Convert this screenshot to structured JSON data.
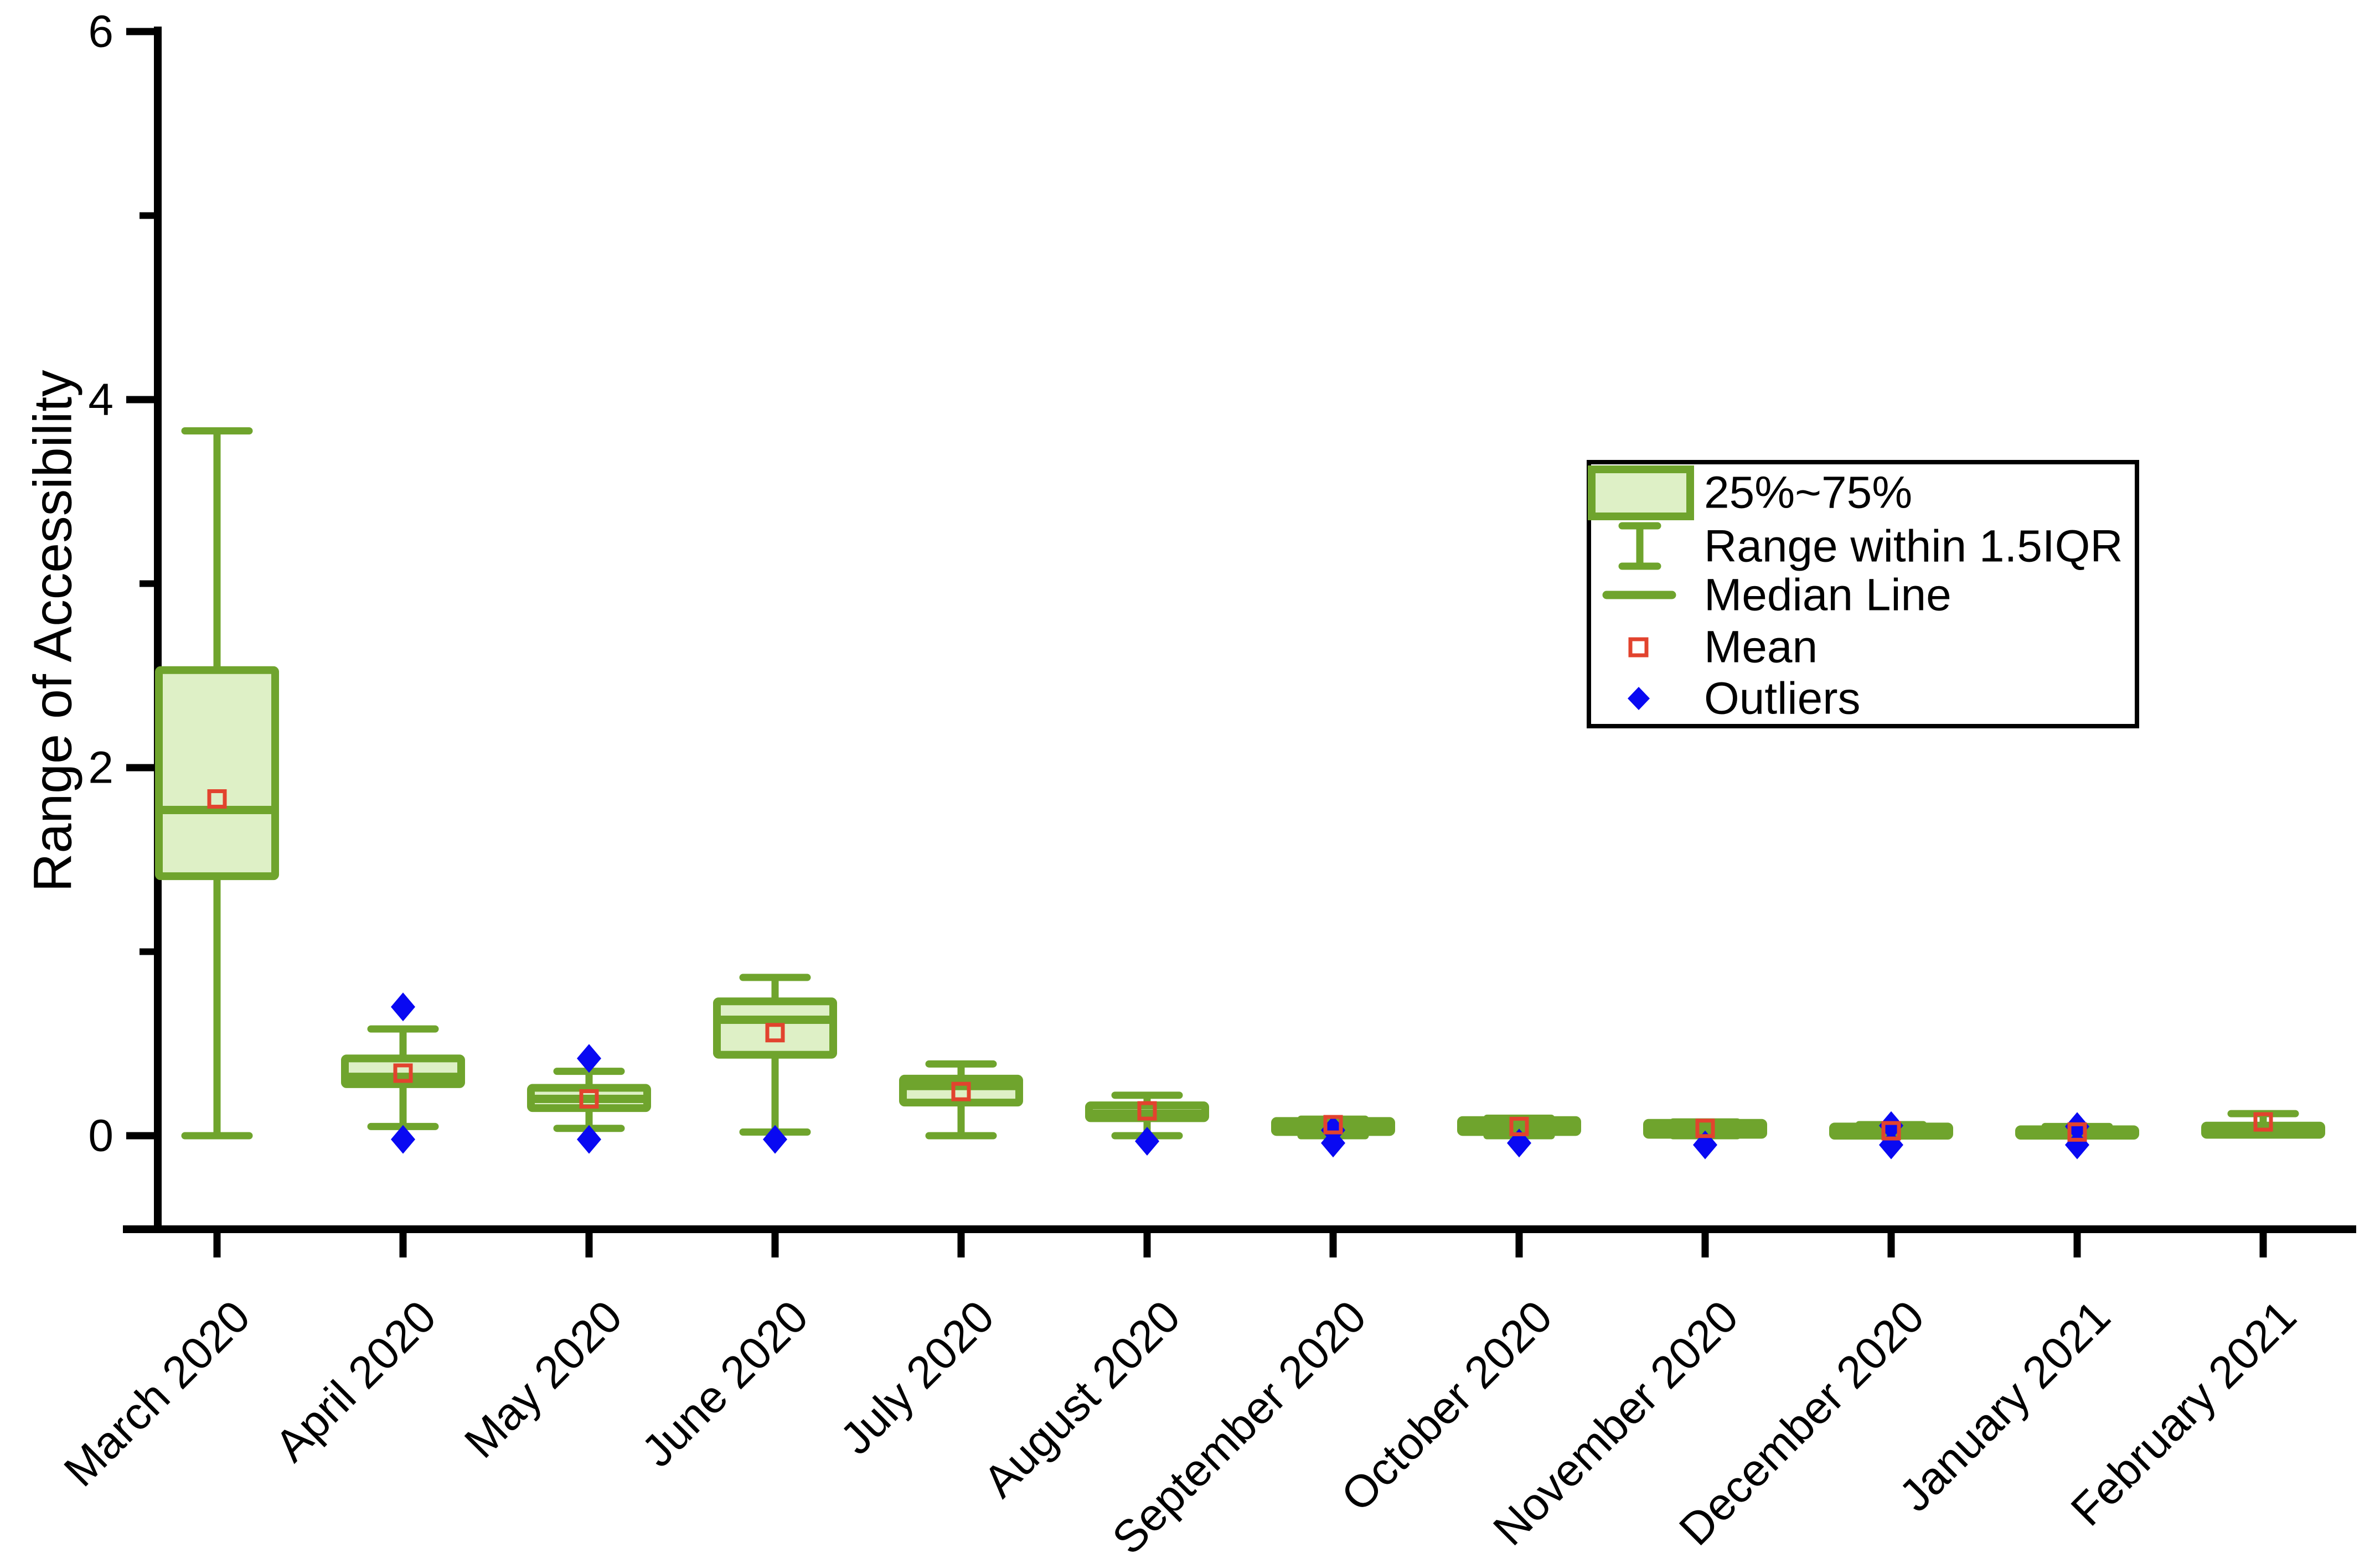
{
  "chart_data": {
    "type": "boxplot",
    "title": "",
    "xlabel": "",
    "ylabel": "Range of Accessibility",
    "ylim": [
      -0.5,
      6
    ],
    "y_major_ticks": [
      0,
      2,
      4,
      6
    ],
    "y_minor_ticks": [
      1,
      3,
      5
    ],
    "grid": false,
    "categories": [
      "March 2020",
      "April 2020",
      "May 2020",
      "June 2020",
      "July 2020",
      "August 2020",
      "September 2020",
      "October 2020",
      "November 2020",
      "December 2020",
      "January 2021",
      "February 2021"
    ],
    "boxes": [
      {
        "category": "March 2020",
        "whisker_low": 0.0,
        "q1": 1.41,
        "median": 1.77,
        "mean": 1.83,
        "q3": 2.53,
        "whisker_high": 3.83,
        "outliers": []
      },
      {
        "category": "April 2020",
        "whisker_low": 0.05,
        "q1": 0.28,
        "median": 0.32,
        "mean": 0.34,
        "q3": 0.42,
        "whisker_high": 0.58,
        "outliers": [
          0.7,
          -0.02
        ]
      },
      {
        "category": "May 2020",
        "whisker_low": 0.04,
        "q1": 0.15,
        "median": 0.2,
        "mean": 0.2,
        "q3": 0.26,
        "whisker_high": 0.35,
        "outliers": [
          0.42,
          -0.02
        ]
      },
      {
        "category": "June 2020",
        "whisker_low": 0.02,
        "q1": 0.44,
        "median": 0.63,
        "mean": 0.56,
        "q3": 0.73,
        "whisker_high": 0.86,
        "outliers": [
          -0.02
        ]
      },
      {
        "category": "July 2020",
        "whisker_low": 0.0,
        "q1": 0.18,
        "median": 0.27,
        "mean": 0.24,
        "q3": 0.31,
        "whisker_high": 0.39,
        "outliers": []
      },
      {
        "category": "August 2020",
        "whisker_low": 0.0,
        "q1": 0.095,
        "median": 0.12,
        "mean": 0.135,
        "q3": 0.165,
        "whisker_high": 0.22,
        "outliers": [
          -0.03
        ]
      },
      {
        "category": "September 2020",
        "whisker_low": 0.0,
        "q1": 0.02,
        "median": 0.045,
        "mean": 0.06,
        "q3": 0.08,
        "whisker_high": 0.09,
        "outliers": [
          0.03,
          -0.04
        ]
      },
      {
        "category": "October 2020",
        "whisker_low": 0.0,
        "q1": 0.02,
        "median": 0.05,
        "mean": 0.05,
        "q3": 0.085,
        "whisker_high": 0.095,
        "outliers": [
          -0.04
        ]
      },
      {
        "category": "November 2020",
        "whisker_low": 0.0,
        "q1": 0.005,
        "median": 0.035,
        "mean": 0.04,
        "q3": 0.07,
        "whisker_high": 0.075,
        "outliers": [
          -0.05
        ]
      },
      {
        "category": "December 2020",
        "whisker_low": 0.0,
        "q1": 0.0,
        "median": 0.02,
        "mean": 0.027,
        "q3": 0.05,
        "whisker_high": 0.06,
        "outliers": [
          0.055,
          -0.05
        ]
      },
      {
        "category": "January 2021",
        "whisker_low": 0.0,
        "q1": 0.0,
        "median": 0.015,
        "mean": 0.02,
        "q3": 0.035,
        "whisker_high": 0.05,
        "outliers": [
          0.05,
          -0.05
        ]
      },
      {
        "category": "February 2021",
        "whisker_low": 0.005,
        "q1": 0.005,
        "median": 0.03,
        "mean": 0.075,
        "q3": 0.055,
        "whisker_high": 0.12,
        "outliers": []
      }
    ],
    "legend": {
      "position": "upper-right",
      "items": [
        "25%~75%",
        "Range within 1.5IQR",
        "Median Line",
        "Mean",
        "Outliers"
      ]
    },
    "colors": {
      "box_fill": "#def0c6",
      "box_stroke": "#6fa42d",
      "median_line": "#6fa42d",
      "whisker": "#6fa42d",
      "mean_marker": "#e2432e",
      "outlier_marker": "#0909f2",
      "axis": "#000000",
      "text": "#000000",
      "legend_border": "#000000",
      "background": "#ffffff"
    }
  }
}
